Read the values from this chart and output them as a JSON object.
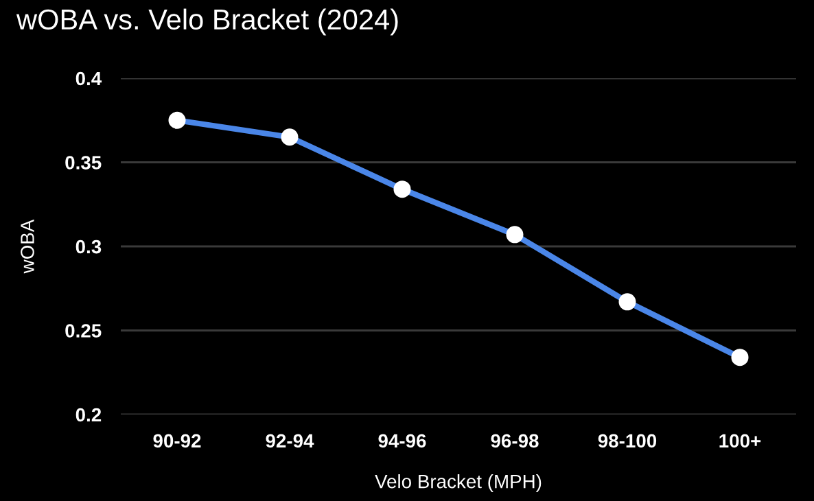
{
  "chart_data": {
    "type": "line",
    "title": "wOBA vs. Velo Bracket (2024)",
    "xlabel": "Velo Bracket (MPH)",
    "ylabel": "wOBA",
    "categories": [
      "90-92",
      "92-94",
      "94-96",
      "96-98",
      "98-100",
      "100+"
    ],
    "series": [
      {
        "color": "#4a86e8",
        "values": [
          0.375,
          0.365,
          0.334,
          0.307,
          0.267,
          0.234
        ]
      }
    ],
    "ylim": [
      0.2,
      0.4
    ],
    "yticks": [
      {
        "value": 0.2,
        "label": "0.2"
      },
      0.25,
      {
        "value": 0.3,
        "label": "0.3"
      },
      0.35,
      {
        "value": 0.4,
        "label": "0.4"
      }
    ],
    "grid": "y",
    "marker": "circle",
    "line_style": "solid",
    "legend": false
  }
}
